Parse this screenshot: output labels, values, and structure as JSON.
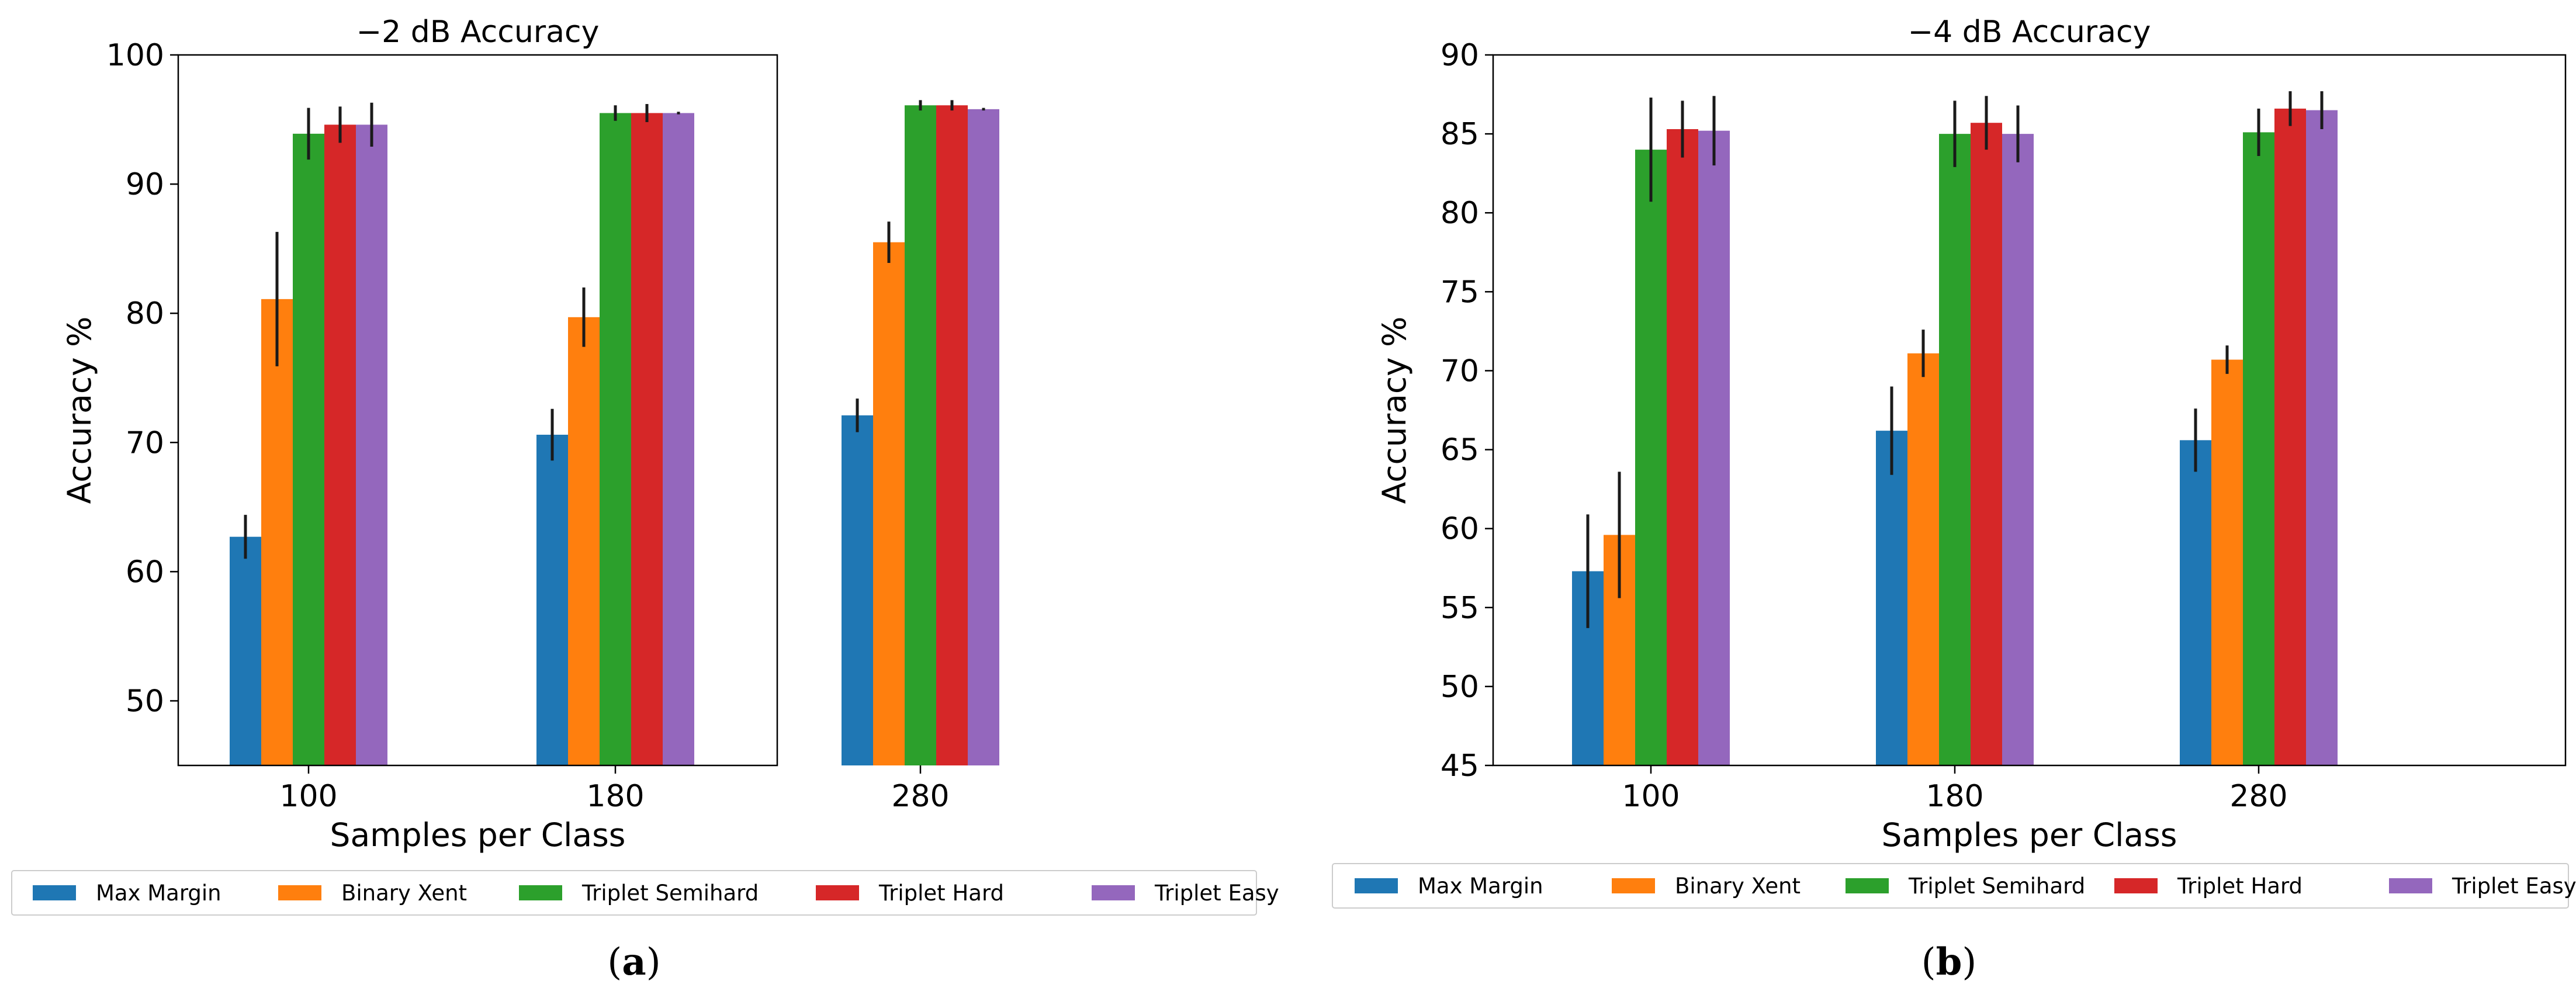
{
  "colors": {
    "Max Margin": "#1f77b4",
    "Binary Xent": "#ff7f0e",
    "Triplet Semihard": "#2ca02c",
    "Triplet Hard": "#d62728",
    "Triplet Easy": "#9467bd",
    "error": "#1a1a1a",
    "axis": "#000000"
  },
  "chart_data": [
    {
      "type": "bar",
      "title": "−2 dB Accuracy",
      "xlabel": "Samples per Class",
      "ylabel": "Accuracy %",
      "ylim": [
        45,
        100
      ],
      "yticks": [
        50,
        60,
        70,
        80,
        90,
        100
      ],
      "categories": [
        "100",
        "180",
        "280"
      ],
      "series": [
        {
          "name": "Max Margin",
          "values": [
            62.7,
            70.6,
            72.1
          ],
          "errors": [
            1.7,
            2.0,
            1.3
          ]
        },
        {
          "name": "Binary Xent",
          "values": [
            81.1,
            79.7,
            85.5
          ],
          "errors": [
            5.2,
            2.3,
            1.6
          ]
        },
        {
          "name": "Triplet Semihard",
          "values": [
            93.9,
            95.5,
            96.1
          ],
          "errors": [
            2.0,
            0.6,
            0.4
          ]
        },
        {
          "name": "Triplet Hard",
          "values": [
            94.6,
            95.5,
            96.1
          ],
          "errors": [
            1.4,
            0.7,
            0.4
          ]
        },
        {
          "name": "Triplet Easy",
          "values": [
            94.6,
            95.5,
            95.8
          ],
          "errors": [
            1.7,
            0.1,
            0.1
          ]
        }
      ],
      "legend": {
        "placement": "bottom",
        "entries": [
          "Max Margin",
          "Binary Xent",
          "Triplet Semihard",
          "Triplet Hard",
          "Triplet Easy"
        ]
      },
      "caption": {
        "open": "(",
        "letter": "a",
        "close": ")"
      }
    },
    {
      "type": "bar",
      "title": "−4 dB Accuracy",
      "xlabel": "Samples per Class",
      "ylabel": "Accuracy %",
      "ylim": [
        45,
        90
      ],
      "yticks": [
        45,
        50,
        55,
        60,
        65,
        70,
        75,
        80,
        85,
        90
      ],
      "categories": [
        "100",
        "180",
        "280"
      ],
      "series": [
        {
          "name": "Max Margin",
          "values": [
            57.3,
            66.2,
            65.6
          ],
          "errors": [
            3.6,
            2.8,
            2.0
          ]
        },
        {
          "name": "Binary Xent",
          "values": [
            59.6,
            71.1,
            70.7
          ],
          "errors": [
            4.0,
            1.5,
            0.9
          ]
        },
        {
          "name": "Triplet Semihard",
          "values": [
            84.0,
            85.0,
            85.1
          ],
          "errors": [
            3.3,
            2.1,
            1.5
          ]
        },
        {
          "name": "Triplet Hard",
          "values": [
            85.3,
            85.7,
            86.6
          ],
          "errors": [
            1.8,
            1.7,
            1.1
          ]
        },
        {
          "name": "Triplet Easy",
          "values": [
            85.2,
            85.0,
            86.5
          ],
          "errors": [
            2.2,
            1.8,
            1.2
          ]
        }
      ],
      "legend": {
        "placement": "bottom",
        "entries": [
          "Max Margin",
          "Binary Xent",
          "Triplet Semihard",
          "Triplet Hard",
          "Triplet Easy"
        ]
      },
      "caption": {
        "open": "(",
        "letter": "b",
        "close": ")"
      }
    }
  ]
}
